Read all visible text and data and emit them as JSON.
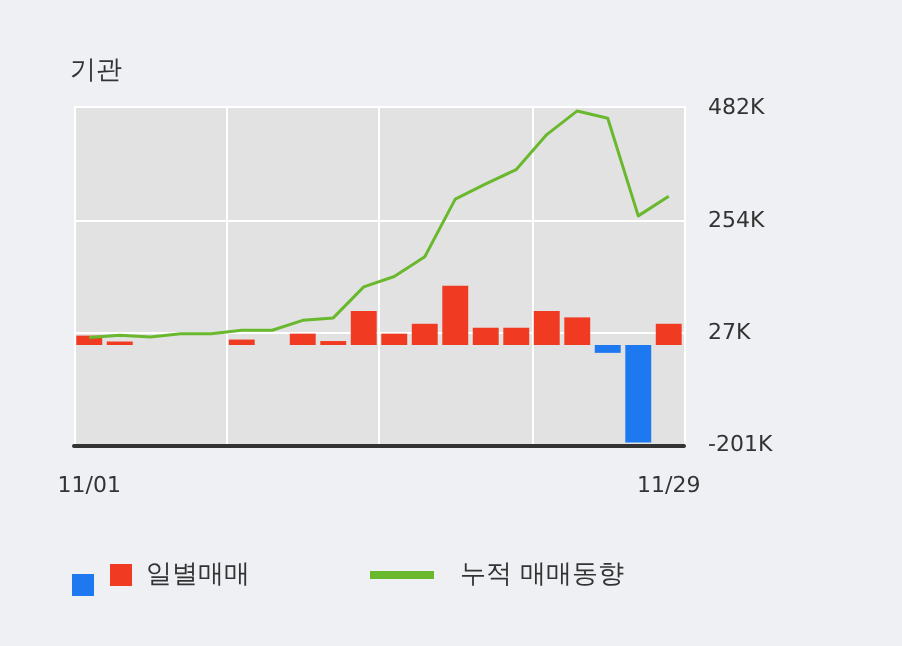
{
  "chart_data": {
    "type": "bar",
    "title": "기관",
    "categories": [
      "11/01",
      null,
      null,
      null,
      null,
      null,
      null,
      null,
      null,
      null,
      null,
      null,
      null,
      null,
      null,
      null,
      null,
      null,
      null,
      "11/29"
    ],
    "series": [
      {
        "name": "일별매매",
        "colors": [
          "#f03a22",
          "#f03a22",
          "#f03a22",
          "#f03a22",
          "#f03a22",
          "#f03a22",
          "#f03a22",
          "#f03a22",
          "#f03a22",
          "#f03a22",
          "#f03a22",
          "#f03a22",
          "#f03a22",
          "#f03a22",
          "#f03a22",
          "#f03a22",
          "#f03a22",
          "#1e78f0",
          "#1e78f0",
          "#f03a22"
        ],
        "values": [
          19,
          7,
          0,
          0,
          0,
          11,
          0,
          23,
          8,
          69,
          23,
          43,
          120,
          35,
          35,
          69,
          56,
          -16,
          -198,
          43
        ]
      },
      {
        "name": "누적 매매동향",
        "type": "line",
        "color": "#6ab82e",
        "values": [
          15,
          20,
          16,
          23,
          23,
          30,
          30,
          50,
          55,
          118,
          139,
          179,
          296,
          327,
          356,
          427,
          475,
          460,
          262,
          302
        ]
      }
    ],
    "ylim": [
      -205,
      485
    ],
    "yticks": [
      {
        "value": -201,
        "label": "-201K"
      },
      {
        "value": 27,
        "label": "27K"
      },
      {
        "value": 254,
        "label": "254K"
      },
      {
        "value": 482,
        "label": "482K"
      }
    ],
    "grid": true,
    "legend": "bottom",
    "marker": "none"
  }
}
